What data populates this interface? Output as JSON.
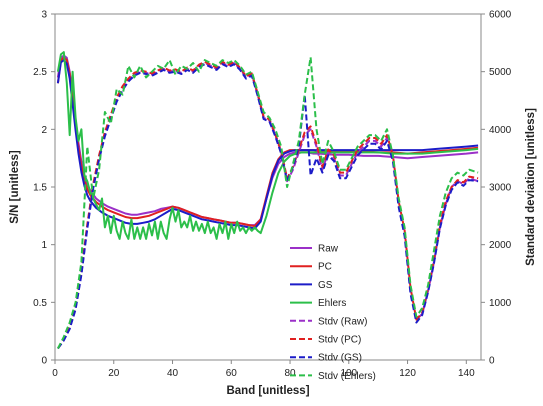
{
  "chart_data": {
    "type": "line",
    "xlabel": "Band [unitless]",
    "ylabel": "S/N [unitless]",
    "y2label": "Standard deviation [unitless]",
    "xlim": [
      0,
      145
    ],
    "ylim": [
      0,
      3
    ],
    "y2lim": [
      0,
      6000
    ],
    "xticks": [
      0,
      20,
      40,
      60,
      80,
      100,
      120,
      140
    ],
    "yticks": [
      0,
      0.5,
      1,
      1.5,
      2,
      2.5,
      3
    ],
    "yticklabels": [
      "0",
      "0.5",
      "1",
      "1.5",
      "2",
      "2.5",
      "3"
    ],
    "y2ticks": [
      0,
      1000,
      2000,
      3000,
      4000,
      5000,
      6000
    ],
    "grid": false,
    "legend_position": "lower-center",
    "series": [
      {
        "name": "Raw",
        "axis": "left",
        "style": "solid",
        "color": "#9b30c8",
        "x": [
          1,
          2,
          3,
          4,
          5,
          6,
          7,
          8,
          9,
          10,
          11,
          12,
          14,
          16,
          18,
          20,
          22,
          24,
          26,
          28,
          30,
          32,
          34,
          36,
          38,
          40,
          42,
          44,
          46,
          48,
          50,
          52,
          54,
          56,
          58,
          60,
          62,
          64,
          66,
          68,
          70,
          72,
          74,
          76,
          78,
          80,
          82,
          84,
          86,
          88,
          90,
          95,
          100,
          105,
          110,
          115,
          120,
          125,
          130,
          135,
          140,
          144
        ],
        "y": [
          2.45,
          2.62,
          2.64,
          2.62,
          2.5,
          2.3,
          2.08,
          1.88,
          1.72,
          1.6,
          1.52,
          1.47,
          1.4,
          1.36,
          1.33,
          1.31,
          1.29,
          1.27,
          1.26,
          1.26,
          1.27,
          1.28,
          1.29,
          1.31,
          1.32,
          1.33,
          1.32,
          1.3,
          1.28,
          1.26,
          1.24,
          1.23,
          1.22,
          1.21,
          1.2,
          1.19,
          1.19,
          1.18,
          1.17,
          1.17,
          1.22,
          1.4,
          1.58,
          1.7,
          1.76,
          1.79,
          1.8,
          1.8,
          1.8,
          1.79,
          1.79,
          1.78,
          1.78,
          1.77,
          1.77,
          1.76,
          1.75,
          1.76,
          1.77,
          1.78,
          1.79,
          1.8
        ]
      },
      {
        "name": "PC",
        "axis": "left",
        "style": "solid",
        "color": "#e02020",
        "x": [
          1,
          2,
          3,
          4,
          5,
          6,
          7,
          8,
          9,
          10,
          11,
          12,
          14,
          16,
          18,
          20,
          22,
          24,
          26,
          28,
          30,
          32,
          34,
          36,
          38,
          40,
          42,
          44,
          46,
          48,
          50,
          52,
          54,
          56,
          58,
          60,
          62,
          64,
          66,
          68,
          70,
          72,
          74,
          76,
          78,
          80,
          82,
          84,
          86,
          88,
          90,
          95,
          100,
          105,
          110,
          115,
          120,
          125,
          130,
          135,
          140,
          144
        ],
        "y": [
          2.4,
          2.6,
          2.62,
          2.6,
          2.48,
          2.27,
          2.04,
          1.84,
          1.68,
          1.56,
          1.48,
          1.43,
          1.37,
          1.33,
          1.3,
          1.28,
          1.26,
          1.24,
          1.23,
          1.23,
          1.24,
          1.25,
          1.27,
          1.29,
          1.31,
          1.33,
          1.32,
          1.3,
          1.28,
          1.26,
          1.24,
          1.23,
          1.22,
          1.21,
          1.2,
          1.19,
          1.19,
          1.18,
          1.17,
          1.16,
          1.22,
          1.42,
          1.62,
          1.74,
          1.8,
          1.82,
          1.82,
          1.82,
          1.82,
          1.82,
          1.81,
          1.81,
          1.81,
          1.81,
          1.8,
          1.8,
          1.79,
          1.8,
          1.81,
          1.82,
          1.83,
          1.84
        ]
      },
      {
        "name": "GS",
        "axis": "left",
        "style": "solid",
        "color": "#1c1cc8",
        "x": [
          1,
          2,
          3,
          4,
          5,
          6,
          7,
          8,
          9,
          10,
          11,
          12,
          14,
          16,
          18,
          20,
          22,
          24,
          26,
          28,
          30,
          32,
          34,
          36,
          38,
          40,
          42,
          44,
          46,
          48,
          50,
          52,
          54,
          56,
          58,
          60,
          62,
          64,
          66,
          68,
          70,
          72,
          74,
          76,
          78,
          80,
          82,
          84,
          86,
          88,
          90,
          95,
          100,
          105,
          110,
          115,
          120,
          125,
          130,
          135,
          140,
          144
        ],
        "y": [
          2.4,
          2.58,
          2.6,
          2.57,
          2.44,
          2.22,
          1.99,
          1.79,
          1.63,
          1.51,
          1.43,
          1.38,
          1.32,
          1.28,
          1.25,
          1.23,
          1.21,
          1.19,
          1.18,
          1.18,
          1.19,
          1.2,
          1.22,
          1.25,
          1.28,
          1.31,
          1.3,
          1.28,
          1.26,
          1.24,
          1.22,
          1.21,
          1.2,
          1.19,
          1.18,
          1.17,
          1.17,
          1.16,
          1.15,
          1.14,
          1.2,
          1.4,
          1.6,
          1.73,
          1.79,
          1.81,
          1.82,
          1.82,
          1.82,
          1.82,
          1.82,
          1.82,
          1.82,
          1.82,
          1.82,
          1.82,
          1.82,
          1.82,
          1.83,
          1.84,
          1.85,
          1.86
        ]
      },
      {
        "name": "Ehlers",
        "axis": "left",
        "style": "solid",
        "color": "#2cbf4a",
        "x": [
          1,
          2,
          3,
          4,
          5,
          6,
          7,
          8,
          9,
          10,
          11,
          12,
          13,
          14,
          15,
          16,
          17,
          18,
          19,
          20,
          21,
          22,
          23,
          24,
          25,
          26,
          27,
          28,
          29,
          30,
          31,
          32,
          33,
          34,
          35,
          36,
          37,
          38,
          39,
          40,
          41,
          42,
          43,
          44,
          45,
          46,
          47,
          48,
          49,
          50,
          51,
          52,
          53,
          54,
          55,
          56,
          57,
          58,
          59,
          60,
          61,
          62,
          63,
          64,
          65,
          66,
          67,
          68,
          69,
          70,
          72,
          74,
          76,
          78,
          80,
          82,
          84,
          86,
          88,
          90,
          95,
          100,
          105,
          110,
          115,
          120,
          125,
          130,
          135,
          140,
          144
        ],
        "y": [
          2.5,
          2.65,
          2.67,
          2.4,
          1.95,
          2.5,
          2.1,
          1.9,
          2.0,
          1.6,
          1.55,
          1.45,
          1.4,
          1.35,
          1.3,
          1.4,
          1.15,
          1.25,
          1.1,
          1.25,
          1.12,
          1.05,
          1.2,
          1.1,
          1.05,
          1.22,
          1.05,
          1.15,
          1.05,
          1.15,
          1.05,
          1.18,
          1.08,
          1.2,
          1.05,
          1.2,
          1.1,
          1.05,
          1.22,
          1.32,
          1.2,
          1.3,
          1.15,
          1.2,
          1.15,
          1.25,
          1.12,
          1.2,
          1.12,
          1.18,
          1.1,
          1.2,
          1.1,
          1.15,
          1.05,
          1.18,
          1.1,
          1.2,
          1.05,
          1.18,
          1.1,
          1.2,
          1.12,
          1.15,
          1.1,
          1.15,
          1.12,
          1.15,
          1.12,
          1.1,
          1.25,
          1.45,
          1.62,
          1.72,
          1.77,
          1.79,
          1.8,
          1.8,
          1.8,
          1.8,
          1.8,
          1.8,
          1.8,
          1.8,
          1.79,
          1.79,
          1.79,
          1.8,
          1.81,
          1.82,
          1.83
        ]
      },
      {
        "name": "Stdv (Raw)",
        "axis": "right",
        "style": "dashed",
        "color": "#9b30c8",
        "x": [
          1,
          3,
          5,
          7,
          9,
          11,
          13,
          15,
          17,
          19,
          21,
          23,
          25,
          27,
          29,
          31,
          33,
          35,
          37,
          39,
          41,
          43,
          45,
          47,
          49,
          51,
          53,
          55,
          57,
          59,
          61,
          63,
          65,
          67,
          69,
          71,
          73,
          75,
          77,
          79,
          81,
          83,
          85,
          87,
          89,
          91,
          93,
          95,
          97,
          99,
          101,
          103,
          105,
          107,
          109,
          111,
          113,
          115,
          117,
          119,
          121,
          123,
          125,
          127,
          129,
          131,
          133,
          135,
          137,
          139,
          141,
          144
        ],
        "y": [
          200,
          350,
          550,
          900,
          1500,
          2300,
          3000,
          3500,
          3900,
          4200,
          4500,
          4700,
          4850,
          4950,
          5000,
          4980,
          4950,
          5000,
          5050,
          5000,
          5020,
          4980,
          5050,
          5000,
          5100,
          5150,
          5100,
          5050,
          5150,
          5100,
          5150,
          5050,
          4900,
          4950,
          4600,
          4200,
          4150,
          3900,
          3600,
          3100,
          3300,
          3600,
          3900,
          4000,
          3700,
          3300,
          3600,
          3500,
          3200,
          3200,
          3400,
          3600,
          3700,
          3800,
          3800,
          3700,
          3850,
          3500,
          2700,
          2200,
          1200,
          700,
          800,
          1200,
          1700,
          2300,
          2700,
          3000,
          3100,
          3050,
          3150,
          3100
        ]
      },
      {
        "name": "Stdv (PC)",
        "axis": "right",
        "style": "dashed",
        "color": "#e02020",
        "x": [
          1,
          3,
          5,
          7,
          9,
          11,
          13,
          15,
          17,
          19,
          21,
          23,
          25,
          27,
          29,
          31,
          33,
          35,
          37,
          39,
          41,
          43,
          45,
          47,
          49,
          51,
          53,
          55,
          57,
          59,
          61,
          63,
          65,
          67,
          69,
          71,
          73,
          75,
          77,
          79,
          81,
          83,
          85,
          87,
          89,
          91,
          93,
          95,
          97,
          99,
          101,
          103,
          105,
          107,
          109,
          111,
          113,
          115,
          117,
          119,
          121,
          123,
          125,
          127,
          129,
          131,
          133,
          135,
          137,
          139,
          141,
          144
        ],
        "y": [
          200,
          350,
          560,
          920,
          1550,
          2350,
          3050,
          3550,
          3950,
          4250,
          4550,
          4750,
          4880,
          4980,
          5020,
          5000,
          4970,
          5020,
          5070,
          5020,
          5040,
          5000,
          5070,
          5020,
          5120,
          5170,
          5120,
          5070,
          5170,
          5120,
          5170,
          5070,
          4920,
          4970,
          4620,
          4220,
          4170,
          3920,
          3620,
          3150,
          3350,
          3650,
          3950,
          4050,
          3750,
          3350,
          3650,
          3550,
          3250,
          3250,
          3450,
          3650,
          3750,
          3850,
          3850,
          3750,
          3900,
          3550,
          2750,
          2250,
          1250,
          700,
          820,
          1250,
          1750,
          2350,
          2750,
          3000,
          3120,
          3080,
          3180,
          3150
        ]
      },
      {
        "name": "Stdv (GS)",
        "axis": "right",
        "style": "dashed",
        "color": "#1c1cc8",
        "x": [
          1,
          3,
          5,
          7,
          9,
          11,
          13,
          15,
          17,
          19,
          21,
          23,
          25,
          27,
          29,
          31,
          33,
          35,
          37,
          39,
          41,
          43,
          45,
          47,
          49,
          51,
          53,
          55,
          57,
          59,
          61,
          63,
          65,
          67,
          69,
          71,
          73,
          75,
          77,
          79,
          81,
          83,
          85,
          87,
          89,
          91,
          93,
          95,
          97,
          99,
          101,
          103,
          105,
          107,
          109,
          111,
          113,
          115,
          117,
          119,
          121,
          123,
          125,
          127,
          129,
          131,
          133,
          135,
          137,
          139,
          141,
          144
        ],
        "y": [
          200,
          340,
          540,
          880,
          1480,
          2280,
          2980,
          3480,
          3880,
          4180,
          4480,
          4680,
          4830,
          4930,
          4980,
          4960,
          4930,
          4980,
          5030,
          4980,
          5000,
          4960,
          5030,
          4980,
          5080,
          5130,
          5080,
          5030,
          5130,
          5080,
          5130,
          5030,
          4880,
          4930,
          4580,
          4180,
          4130,
          3880,
          3580,
          3100,
          3350,
          3700,
          4600,
          3200,
          3500,
          3250,
          3550,
          3450,
          3150,
          3150,
          3350,
          3550,
          3650,
          3750,
          3750,
          3650,
          3800,
          3450,
          2650,
          2150,
          1150,
          650,
          780,
          1180,
          1680,
          2280,
          2680,
          2950,
          3080,
          3020,
          3120,
          3100
        ]
      },
      {
        "name": "Stdv (Ehlers)",
        "axis": "right",
        "style": "dashed",
        "color": "#2cbf4a",
        "x": [
          1,
          3,
          5,
          7,
          9,
          11,
          13,
          15,
          17,
          19,
          21,
          23,
          25,
          27,
          29,
          31,
          33,
          35,
          37,
          39,
          41,
          43,
          45,
          47,
          49,
          51,
          53,
          55,
          57,
          59,
          61,
          63,
          65,
          67,
          69,
          71,
          73,
          75,
          77,
          79,
          81,
          83,
          85,
          87,
          89,
          91,
          93,
          95,
          97,
          99,
          101,
          103,
          105,
          107,
          109,
          111,
          113,
          115,
          117,
          119,
          121,
          123,
          125,
          127,
          129,
          131,
          133,
          135,
          137,
          139,
          141,
          144
        ],
        "y": [
          200,
          400,
          650,
          1000,
          1700,
          3700,
          2800,
          3300,
          4300,
          4100,
          4700,
          4600,
          5100,
          4900,
          5100,
          4900,
          5000,
          5100,
          5050,
          5200,
          4950,
          5100,
          5050,
          5150,
          5000,
          5200,
          5150,
          5100,
          5200,
          5150,
          5200,
          5100,
          4950,
          5000,
          4650,
          4300,
          4200,
          4000,
          3700,
          3000,
          3400,
          3800,
          4600,
          5250,
          4000,
          3400,
          3800,
          3600,
          3300,
          3300,
          3500,
          3700,
          3800,
          3900,
          3900,
          3800,
          4000,
          3550,
          2800,
          2300,
          1300,
          750,
          900,
          1300,
          1900,
          2500,
          2900,
          3150,
          3250,
          3200,
          3300,
          3250
        ]
      }
    ]
  }
}
